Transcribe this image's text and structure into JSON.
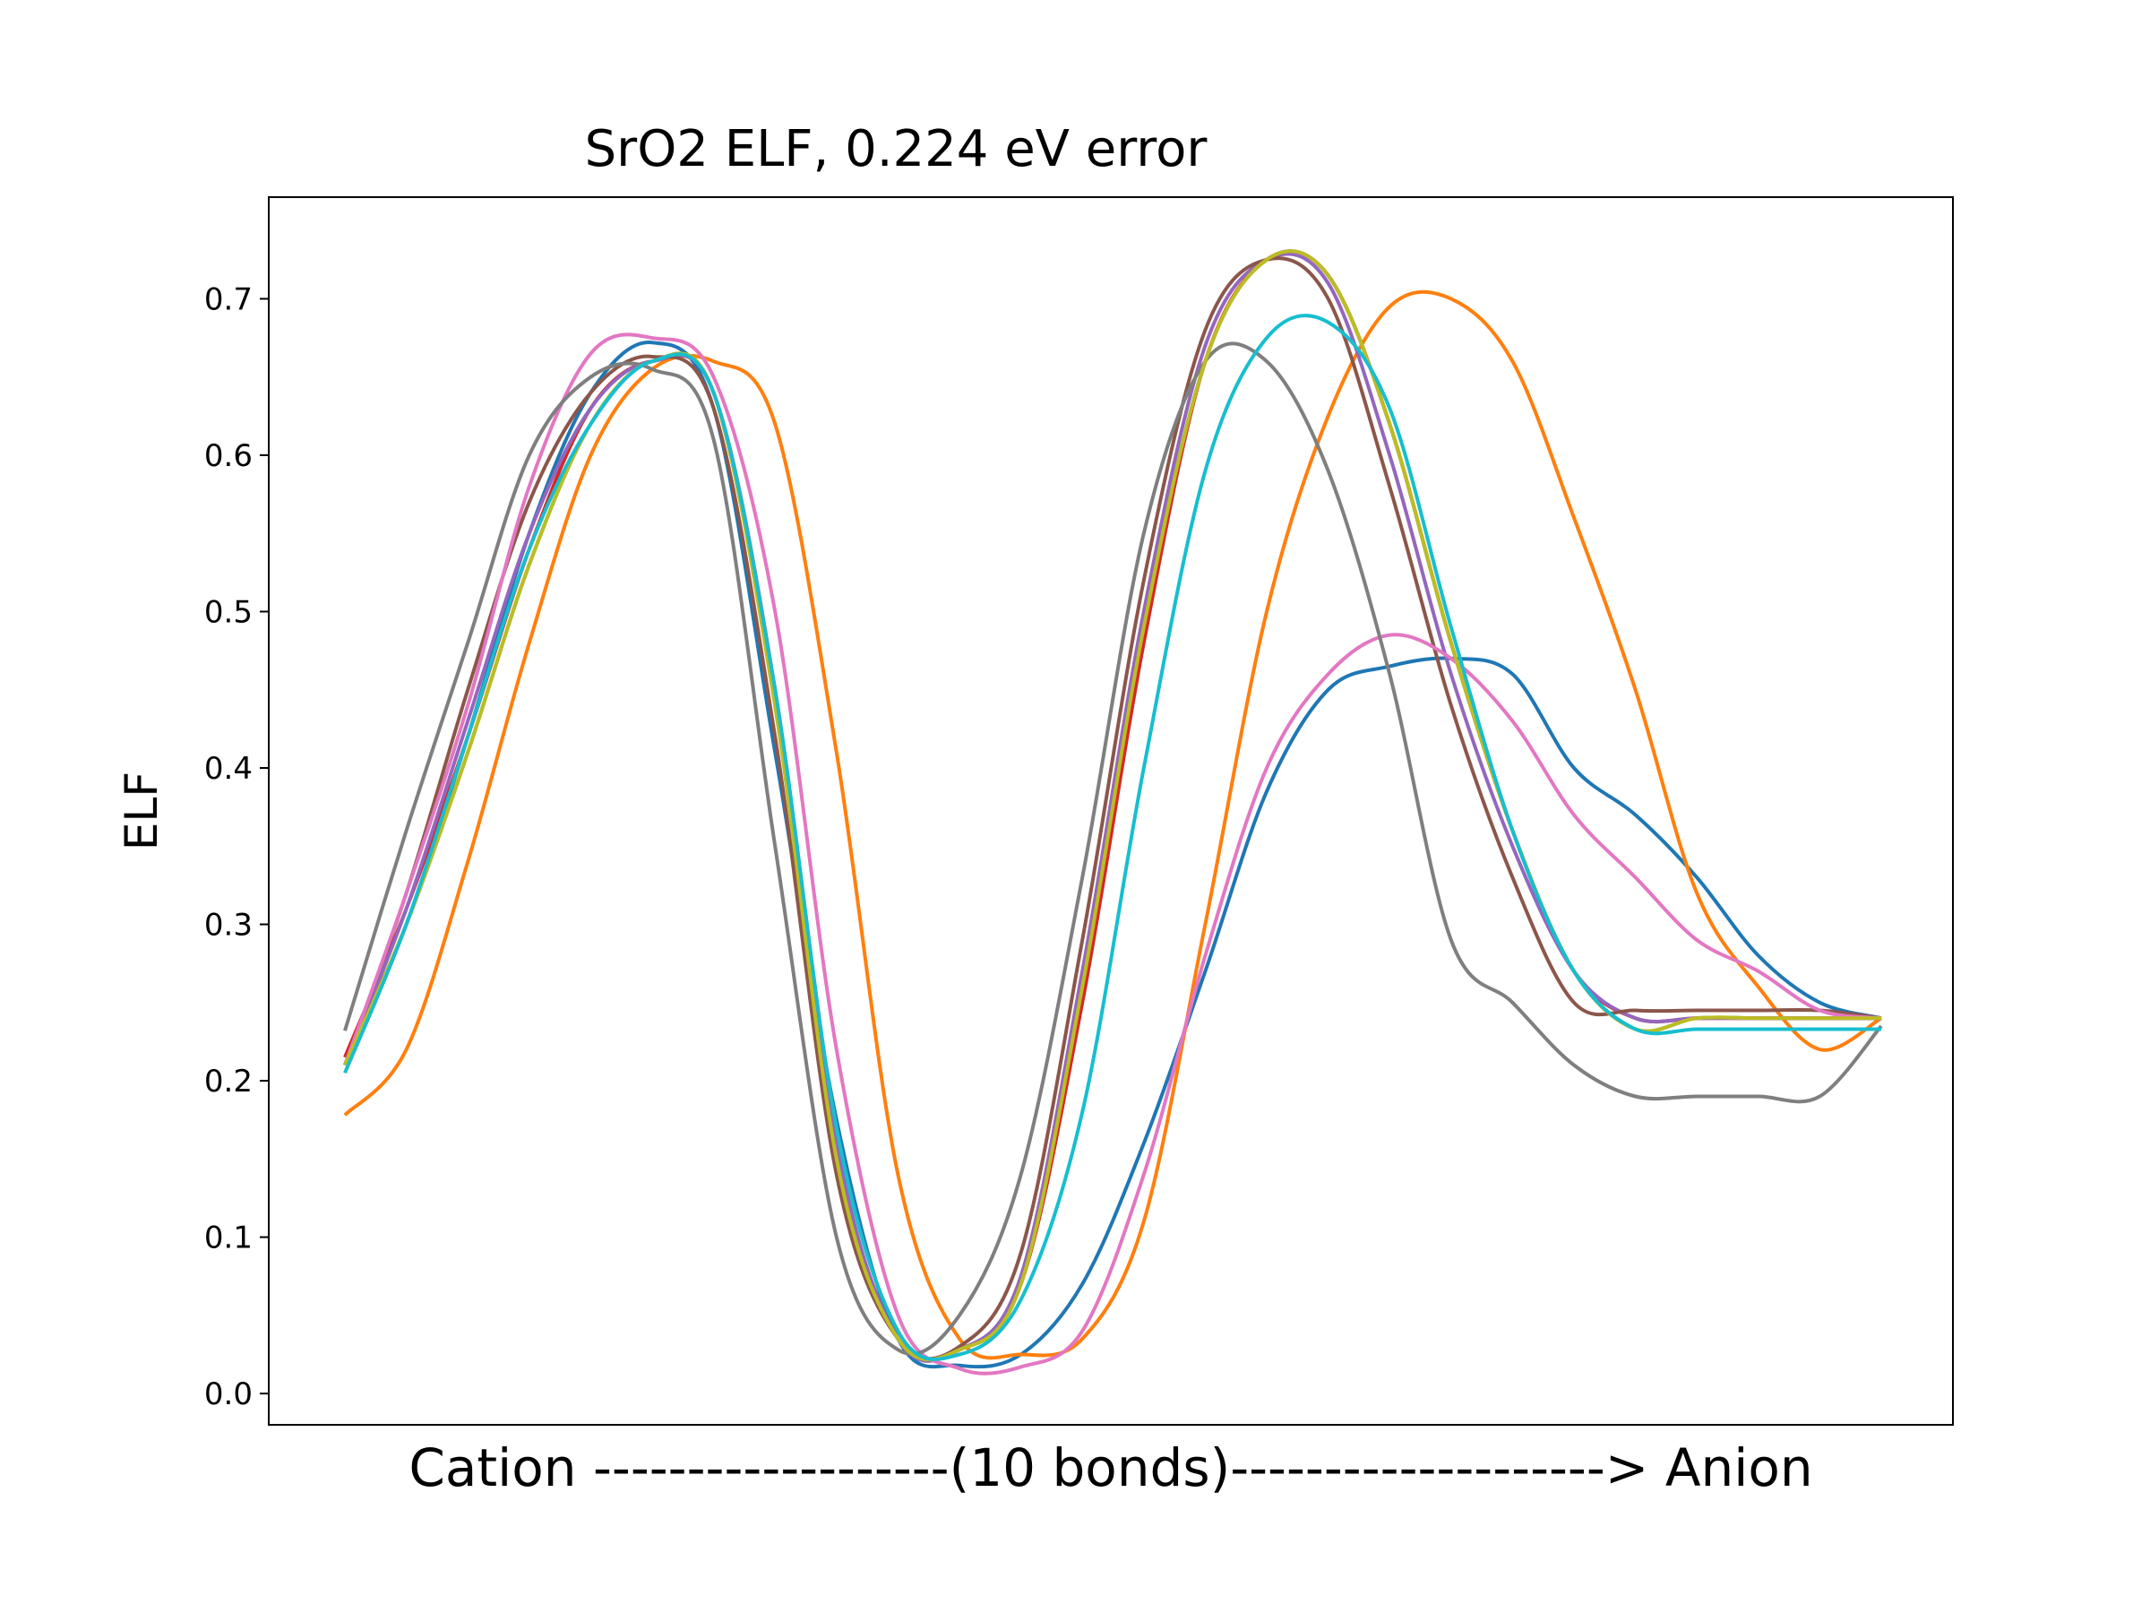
{
  "chart_data": {
    "type": "line",
    "title": "SrO2 ELF, 0.224 eV error",
    "xlabel": "Cation -------------------(10 bonds)--------------------> Anion",
    "ylabel": "ELF",
    "xlim": [
      0,
      100
    ],
    "ylim": [
      -0.02,
      0.765
    ],
    "yticks": [
      0.0,
      0.1,
      0.2,
      0.3,
      0.4,
      0.5,
      0.6,
      0.7
    ],
    "ytick_labels": [
      "0.0",
      "0.1",
      "0.2",
      "0.3",
      "0.4",
      "0.5",
      "0.6",
      "0.7"
    ],
    "grid": false,
    "legend": "none",
    "series": [
      {
        "color": "#1f77b4",
        "x": [
          0,
          4,
          8,
          12,
          16,
          20,
          24,
          28,
          32,
          36,
          40,
          44,
          48,
          52,
          56,
          60,
          64,
          68,
          72,
          76,
          80,
          84,
          88,
          92,
          96,
          100
        ],
        "y": [
          0.21,
          0.3,
          0.42,
          0.55,
          0.64,
          0.672,
          0.63,
          0.41,
          0.175,
          0.035,
          0.018,
          0.025,
          0.07,
          0.16,
          0.27,
          0.385,
          0.45,
          0.465,
          0.47,
          0.46,
          0.4,
          0.37,
          0.33,
          0.28,
          0.25,
          0.24
        ]
      },
      {
        "color": "#ff7f0e",
        "x": [
          0,
          4,
          8,
          12,
          16,
          20,
          24,
          28,
          32,
          36,
          40,
          44,
          48,
          52,
          56,
          60,
          64,
          68,
          72,
          76,
          80,
          84,
          88,
          92,
          96,
          100
        ],
        "y": [
          0.178,
          0.22,
          0.34,
          0.48,
          0.6,
          0.655,
          0.66,
          0.62,
          0.41,
          0.14,
          0.035,
          0.025,
          0.035,
          0.11,
          0.3,
          0.5,
          0.625,
          0.695,
          0.7,
          0.66,
          0.56,
          0.45,
          0.32,
          0.26,
          0.22,
          0.24
        ]
      },
      {
        "color": "#2ca02c",
        "x": [
          0,
          4,
          8,
          12,
          16,
          20,
          24,
          28,
          32,
          36,
          40,
          44,
          48,
          52,
          56,
          60,
          64,
          68,
          72,
          76,
          80,
          84,
          88,
          92,
          96,
          100
        ],
        "y": [
          0.21,
          0.3,
          0.41,
          0.53,
          0.62,
          0.66,
          0.64,
          0.44,
          0.15,
          0.035,
          0.028,
          0.07,
          0.26,
          0.49,
          0.66,
          0.725,
          0.715,
          0.62,
          0.48,
          0.36,
          0.27,
          0.233,
          0.24,
          0.24,
          0.24,
          0.24
        ]
      },
      {
        "color": "#d62728",
        "x": [
          0,
          4,
          8,
          12,
          16,
          20,
          24,
          28,
          32,
          36,
          40,
          44,
          48,
          52,
          56,
          60,
          64,
          68,
          72,
          76,
          80,
          84,
          88,
          92,
          96,
          100
        ],
        "y": [
          0.215,
          0.31,
          0.42,
          0.54,
          0.63,
          0.66,
          0.64,
          0.45,
          0.16,
          0.035,
          0.028,
          0.07,
          0.25,
          0.48,
          0.66,
          0.725,
          0.715,
          0.62,
          0.48,
          0.36,
          0.27,
          0.24,
          0.24,
          0.24,
          0.24,
          0.24
        ]
      },
      {
        "color": "#9467bd",
        "x": [
          0,
          4,
          8,
          12,
          16,
          20,
          24,
          28,
          32,
          36,
          40,
          44,
          48,
          52,
          56,
          60,
          64,
          68,
          72,
          76,
          80,
          84,
          88,
          92,
          96,
          100
        ],
        "y": [
          0.21,
          0.31,
          0.43,
          0.55,
          0.63,
          0.66,
          0.64,
          0.45,
          0.16,
          0.035,
          0.028,
          0.075,
          0.27,
          0.5,
          0.67,
          0.725,
          0.71,
          0.6,
          0.46,
          0.35,
          0.27,
          0.24,
          0.24,
          0.24,
          0.24,
          0.24
        ]
      },
      {
        "color": "#8c564b",
        "x": [
          0,
          4,
          8,
          12,
          16,
          20,
          24,
          28,
          32,
          36,
          40,
          44,
          48,
          52,
          56,
          60,
          64,
          68,
          72,
          76,
          80,
          84,
          88,
          92,
          96,
          100
        ],
        "y": [
          0.21,
          0.32,
          0.45,
          0.57,
          0.64,
          0.663,
          0.63,
          0.42,
          0.14,
          0.035,
          0.03,
          0.09,
          0.29,
          0.52,
          0.68,
          0.725,
          0.7,
          0.58,
          0.44,
          0.33,
          0.25,
          0.245,
          0.245,
          0.245,
          0.245,
          0.24
        ]
      },
      {
        "color": "#e377c2",
        "x": [
          0,
          4,
          8,
          12,
          16,
          20,
          24,
          28,
          32,
          36,
          40,
          44,
          48,
          52,
          56,
          60,
          64,
          68,
          72,
          76,
          80,
          84,
          88,
          92,
          96,
          100
        ],
        "y": [
          0.21,
          0.32,
          0.44,
          0.58,
          0.665,
          0.675,
          0.65,
          0.5,
          0.22,
          0.05,
          0.016,
          0.017,
          0.04,
          0.14,
          0.28,
          0.4,
          0.46,
          0.485,
          0.47,
          0.43,
          0.37,
          0.33,
          0.29,
          0.27,
          0.245,
          0.24
        ]
      },
      {
        "color": "#7f7f7f",
        "x": [
          0,
          4,
          8,
          12,
          16,
          20,
          24,
          28,
          32,
          36,
          40,
          44,
          48,
          52,
          56,
          60,
          64,
          68,
          72,
          76,
          80,
          84,
          88,
          92,
          96,
          100
        ],
        "y": [
          0.232,
          0.36,
          0.48,
          0.6,
          0.65,
          0.655,
          0.61,
          0.35,
          0.1,
          0.028,
          0.05,
          0.14,
          0.33,
          0.55,
          0.66,
          0.66,
          0.59,
          0.46,
          0.29,
          0.25,
          0.21,
          0.19,
          0.19,
          0.19,
          0.19,
          0.235
        ]
      },
      {
        "color": "#bcbd22",
        "x": [
          0,
          4,
          8,
          12,
          16,
          20,
          24,
          28,
          32,
          36,
          40,
          44,
          48,
          52,
          56,
          60,
          64,
          68,
          72,
          76,
          80,
          84,
          88,
          92,
          96,
          100
        ],
        "y": [
          0.21,
          0.3,
          0.41,
          0.53,
          0.62,
          0.66,
          0.64,
          0.44,
          0.15,
          0.035,
          0.028,
          0.07,
          0.26,
          0.49,
          0.66,
          0.725,
          0.715,
          0.62,
          0.48,
          0.36,
          0.27,
          0.233,
          0.24,
          0.24,
          0.24,
          0.24
        ]
      },
      {
        "color": "#17becf",
        "x": [
          0,
          4,
          8,
          12,
          16,
          20,
          24,
          28,
          32,
          36,
          40,
          44,
          48,
          52,
          56,
          60,
          64,
          68,
          72,
          76,
          80,
          84,
          88,
          92,
          96,
          100
        ],
        "y": [
          0.205,
          0.3,
          0.42,
          0.54,
          0.62,
          0.66,
          0.64,
          0.45,
          0.17,
          0.04,
          0.025,
          0.06,
          0.18,
          0.4,
          0.59,
          0.675,
          0.685,
          0.63,
          0.49,
          0.36,
          0.27,
          0.233,
          0.233,
          0.233,
          0.233,
          0.233
        ]
      }
    ]
  }
}
